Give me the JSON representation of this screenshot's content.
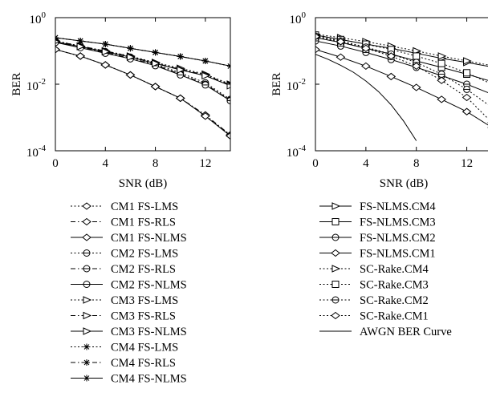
{
  "chart_data": [
    {
      "type": "line",
      "xlabel": "SNR (dB)",
      "ylabel": "BER",
      "yscale": "log",
      "xlim": [
        0,
        14
      ],
      "ylim": [
        0.0001,
        1
      ],
      "xticks": [
        "0",
        "4",
        "8",
        "12"
      ],
      "yticks": [
        {
          "base": "10",
          "exp": "0"
        },
        {
          "base": "10",
          "exp": "-2"
        },
        {
          "base": "10",
          "exp": "-4"
        }
      ],
      "legend_position": "below",
      "series": [
        {
          "name": "CM1 FS-LMS",
          "line": "dotted",
          "marker": "diamond",
          "x": [
            0,
            2,
            4,
            6,
            8,
            10,
            12,
            14
          ],
          "y": [
            0.11,
            0.07,
            0.038,
            0.019,
            0.0085,
            0.0038,
            0.0011,
            0.0003
          ]
        },
        {
          "name": "CM1 FS-RLS",
          "line": "dashdot",
          "marker": "diamond",
          "x": [
            0,
            2,
            4,
            6,
            8,
            10,
            12,
            14
          ],
          "y": [
            0.11,
            0.07,
            0.038,
            0.019,
            0.0085,
            0.0038,
            0.0012,
            0.0003
          ]
        },
        {
          "name": "CM1 FS-NLMS",
          "line": "solid",
          "marker": "diamond",
          "x": [
            0,
            2,
            4,
            6,
            8,
            10,
            12,
            14
          ],
          "y": [
            0.11,
            0.07,
            0.038,
            0.019,
            0.0085,
            0.0038,
            0.0011,
            0.00028
          ]
        },
        {
          "name": "CM2 FS-LMS",
          "line": "dotted",
          "marker": "circle",
          "x": [
            0,
            2,
            4,
            6,
            8,
            10,
            12,
            14
          ],
          "y": [
            0.2,
            0.14,
            0.095,
            0.065,
            0.04,
            0.022,
            0.011,
            0.0035
          ]
        },
        {
          "name": "CM2 FS-RLS",
          "line": "dashdot",
          "marker": "circle",
          "x": [
            0,
            2,
            4,
            6,
            8,
            10,
            12,
            14
          ],
          "y": [
            0.19,
            0.13,
            0.09,
            0.06,
            0.038,
            0.02,
            0.01,
            0.0033
          ]
        },
        {
          "name": "CM2 FS-NLMS",
          "line": "solid",
          "marker": "circle",
          "x": [
            0,
            2,
            4,
            6,
            8,
            10,
            12,
            14
          ],
          "y": [
            0.18,
            0.125,
            0.085,
            0.058,
            0.036,
            0.019,
            0.0095,
            0.0032
          ]
        },
        {
          "name": "CM3 FS-LMS",
          "line": "dotted",
          "marker": "triangle",
          "x": [
            0,
            2,
            4,
            6,
            8,
            10,
            12,
            14
          ],
          "y": [
            0.2,
            0.14,
            0.1,
            0.07,
            0.045,
            0.03,
            0.02,
            0.01
          ]
        },
        {
          "name": "CM3 FS-RLS",
          "line": "dashdot",
          "marker": "triangle",
          "x": [
            0,
            2,
            4,
            6,
            8,
            10,
            12,
            14
          ],
          "y": [
            0.2,
            0.14,
            0.1,
            0.068,
            0.043,
            0.028,
            0.019,
            0.0095
          ]
        },
        {
          "name": "CM3 FS-NLMS",
          "line": "solid",
          "marker": "triangle",
          "x": [
            0,
            2,
            4,
            6,
            8,
            10,
            12,
            14
          ],
          "y": [
            0.19,
            0.135,
            0.095,
            0.065,
            0.042,
            0.027,
            0.018,
            0.009
          ]
        },
        {
          "name": "CM4 FS-LMS",
          "line": "dotted",
          "marker": "star",
          "x": [
            0,
            2,
            4,
            6,
            8,
            10,
            12,
            14
          ],
          "y": [
            0.25,
            0.2,
            0.16,
            0.12,
            0.09,
            0.068,
            0.05,
            0.035
          ]
        },
        {
          "name": "CM4 FS-RLS",
          "line": "dashdot",
          "marker": "star",
          "x": [
            0,
            2,
            4,
            6,
            8,
            10,
            12,
            14
          ],
          "y": [
            0.25,
            0.2,
            0.16,
            0.12,
            0.09,
            0.068,
            0.05,
            0.035
          ]
        },
        {
          "name": "CM4 FS-NLMS",
          "line": "solid",
          "marker": "star",
          "x": [
            0,
            2,
            4,
            6,
            8,
            10,
            12,
            14
          ],
          "y": [
            0.25,
            0.2,
            0.16,
            0.12,
            0.09,
            0.068,
            0.05,
            0.035
          ]
        }
      ]
    },
    {
      "type": "line",
      "xlabel": "SNR (dB)",
      "ylabel": "BER",
      "yscale": "log",
      "xlim": [
        0,
        14
      ],
      "ylim": [
        0.0001,
        1
      ],
      "xticks": [
        "0",
        "4",
        "8",
        "12"
      ],
      "yticks": [
        {
          "base": "10",
          "exp": "0"
        },
        {
          "base": "10",
          "exp": "-2"
        },
        {
          "base": "10",
          "exp": "-4"
        }
      ],
      "legend_position": "below",
      "series": [
        {
          "name": "FS-NLMS.CM4",
          "line": "solid",
          "marker": "triangle",
          "x": [
            0,
            2,
            4,
            6,
            8,
            10,
            12,
            14
          ],
          "y": [
            0.3,
            0.22,
            0.16,
            0.12,
            0.085,
            0.06,
            0.045,
            0.033
          ]
        },
        {
          "name": "FS-NLMS.CM3",
          "line": "solid",
          "marker": "square",
          "x": [
            0,
            2,
            4,
            6,
            8,
            10,
            12,
            14
          ],
          "y": [
            0.25,
            0.18,
            0.12,
            0.08,
            0.05,
            0.032,
            0.02,
            0.012
          ]
        },
        {
          "name": "FS-NLMS.CM2",
          "line": "solid",
          "marker": "circle",
          "x": [
            0,
            2,
            4,
            6,
            8,
            10,
            12,
            14
          ],
          "y": [
            0.2,
            0.14,
            0.09,
            0.055,
            0.032,
            0.018,
            0.01,
            0.005
          ]
        },
        {
          "name": "FS-NLMS.CM1",
          "line": "solid",
          "marker": "diamond",
          "x": [
            0,
            2,
            4,
            6,
            8,
            10,
            12,
            14
          ],
          "y": [
            0.11,
            0.065,
            0.035,
            0.017,
            0.008,
            0.0035,
            0.0015,
            0.0005
          ]
        },
        {
          "name": "SC-Rake.CM4",
          "line": "dotted",
          "marker": "triangle",
          "x": [
            0,
            2,
            4,
            6,
            8,
            10,
            12,
            14
          ],
          "y": [
            0.32,
            0.25,
            0.19,
            0.14,
            0.1,
            0.07,
            0.05,
            0.036
          ]
        },
        {
          "name": "SC-Rake.CM3",
          "line": "dotted",
          "marker": "square",
          "x": [
            0,
            2,
            4,
            6,
            8,
            10,
            12,
            14
          ],
          "y": [
            0.3,
            0.22,
            0.16,
            0.11,
            0.07,
            0.042,
            0.022,
            0.01
          ]
        },
        {
          "name": "SC-Rake.CM2",
          "line": "dotted",
          "marker": "circle",
          "x": [
            0,
            2,
            4,
            6,
            8,
            10,
            12,
            14
          ],
          "y": [
            0.28,
            0.2,
            0.13,
            0.08,
            0.045,
            0.02,
            0.007,
            0.002
          ]
        },
        {
          "name": "SC-Rake.CM1",
          "line": "dotted",
          "marker": "diamond",
          "x": [
            0,
            2,
            4,
            6,
            8,
            10,
            12,
            14
          ],
          "y": [
            0.27,
            0.19,
            0.12,
            0.07,
            0.035,
            0.013,
            0.004,
            0.0007
          ]
        },
        {
          "name": "AWGN BER Curve",
          "line": "solid",
          "marker": "none",
          "x": [
            0,
            1,
            2,
            3,
            4,
            5,
            6,
            7,
            8
          ],
          "y": [
            0.079,
            0.056,
            0.037,
            0.023,
            0.0125,
            0.006,
            0.0024,
            0.00077,
            0.0002
          ]
        }
      ]
    }
  ]
}
